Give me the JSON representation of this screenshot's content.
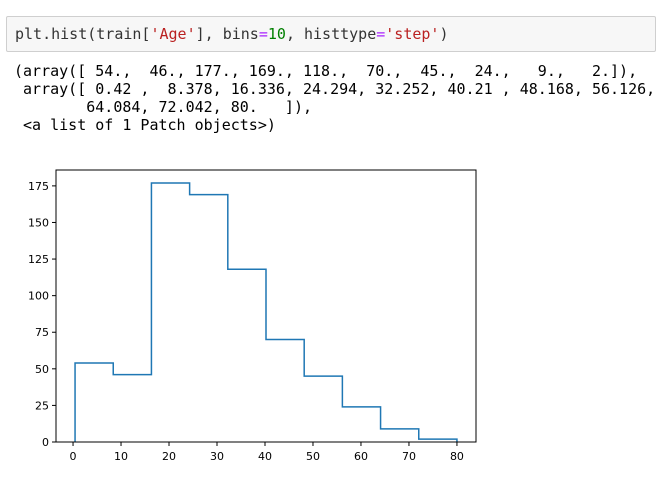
{
  "input": {
    "code_tokens": [
      {
        "text": "plt.hist",
        "kind": "name"
      },
      {
        "text": "(",
        "kind": "paren"
      },
      {
        "text": "train[",
        "kind": "name"
      },
      {
        "text": "'Age'",
        "kind": "str"
      },
      {
        "text": "], bins",
        "kind": "name"
      },
      {
        "text": "=",
        "kind": "op"
      },
      {
        "text": "10",
        "kind": "num"
      },
      {
        "text": ", histtype",
        "kind": "name"
      },
      {
        "text": "=",
        "kind": "op"
      },
      {
        "text": "'step'",
        "kind": "str"
      },
      {
        "text": ")",
        "kind": "paren"
      }
    ]
  },
  "output": {
    "lines": [
      "(array([ 54.,  46., 177., 169., 118.,  70.,  45.,  24.,   9.,   2.]),",
      " array([ 0.42 ,  8.378, 16.336, 24.294, 32.252, 40.21 , 48.168, 56.126,",
      "        64.084, 72.042, 80.   ]),",
      " <a list of 1 Patch objects>)"
    ]
  },
  "colors": {
    "step_line": "#1f77b4",
    "axes": "#000000",
    "string": "#ba2121",
    "number": "#008000",
    "operator": "#aa22ff"
  },
  "chart_data": {
    "type": "histogram-step",
    "counts": [
      54,
      46,
      177,
      169,
      118,
      70,
      45,
      24,
      9,
      2
    ],
    "bin_edges": [
      0.42,
      8.378,
      16.336,
      24.294,
      32.252,
      40.21,
      48.168,
      56.126,
      64.084,
      72.042,
      80.0
    ],
    "xlim": [
      -3.55,
      83.97
    ],
    "ylim": [
      0,
      185.85
    ],
    "xticks": [
      0,
      10,
      20,
      30,
      40,
      50,
      60,
      70,
      80
    ],
    "yticks": [
      0,
      25,
      50,
      75,
      100,
      125,
      150,
      175
    ],
    "grid": false
  }
}
